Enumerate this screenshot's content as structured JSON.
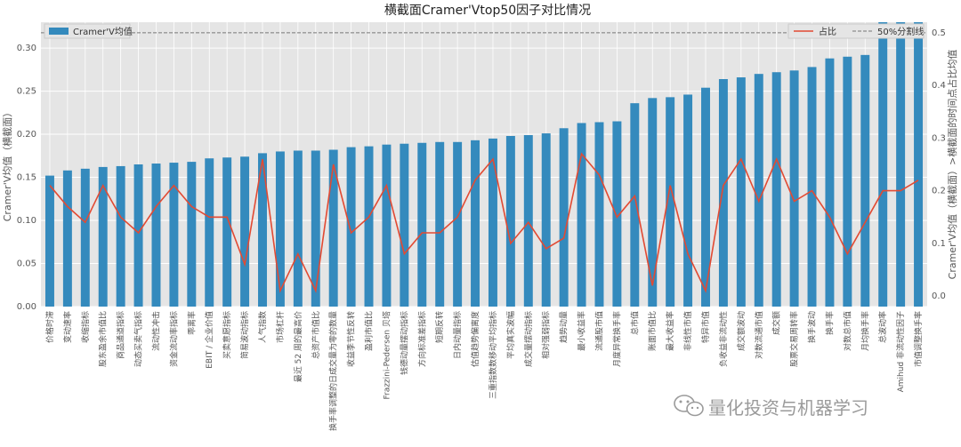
{
  "chart_data": {
    "type": "bar+line",
    "title": "横截面Cramer'Vtop50因子对比情况",
    "ylabel_left": "Cramer'V均值（横截面）",
    "ylabel_right": "Cramer'V均值（横截面）>横截面的时间点占比均值",
    "ylim_left": [
      0,
      0.33
    ],
    "ylim_right": [
      -0.02,
      0.52
    ],
    "yticks_left": [
      "0.00",
      "0.05",
      "0.10",
      "0.15",
      "0.20",
      "0.25",
      "0.30"
    ],
    "yticks_right": [
      "0.0",
      "0.1",
      "0.2",
      "0.3",
      "0.4",
      "0.5"
    ],
    "grid": true,
    "legend_left": {
      "label": "Cramer'V均值",
      "placement": "top-left"
    },
    "legend_right": [
      {
        "label": "占比",
        "style": "line",
        "color": "#e24a33"
      },
      {
        "label": "50%分割线",
        "style": "dashed",
        "color": "#777777"
      }
    ],
    "threshold": 0.5,
    "categories": [
      "价格时滞",
      "变动速率",
      "收缩指标",
      "股东盈余市值比",
      "商品通道指标",
      "动态买卖气指标",
      "流动性冲击",
      "资金流动率指标",
      "乖离率",
      "EBIT / 企业价值",
      "买卖意愿指标",
      "简易波动指标",
      "人气指数",
      "市场杠杆",
      "最近 52 周的最高价",
      "总资产市值比",
      "换手率调整的日成交量为零的数量",
      "收益季节性反转",
      "盈利市值比",
      "Frazzini-Pedersen 贝塔",
      "钱德动量摆动指标",
      "方向标准差指标",
      "短期反转",
      "日内动量指标",
      "估值趋势偏离度",
      "三重指数数移动平均指标",
      "平均真实波幅",
      "成交量摆动指标",
      "相对强弱指标",
      "趋势动量",
      "最小收益率",
      "流通股市值",
      "月度异常换手率",
      "总市值",
      "账面市值比",
      "最大收益率",
      "非线性市值",
      "特异市值",
      "负收益非流动性",
      "成交额波动",
      "对数流通市值",
      "成交额",
      "股票交易周转率",
      "换手波动",
      "换手率",
      "对数总市值",
      "月均换手率",
      "总波动率",
      "Amihud 非流动性因子",
      "市值调整换手率"
    ],
    "series": [
      {
        "name": "Cramer'V均值",
        "type": "bar",
        "color": "#348abd",
        "values": [
          0.152,
          0.158,
          0.16,
          0.162,
          0.163,
          0.165,
          0.166,
          0.167,
          0.168,
          0.172,
          0.173,
          0.174,
          0.178,
          0.18,
          0.181,
          0.181,
          0.182,
          0.185,
          0.186,
          0.188,
          0.189,
          0.19,
          0.191,
          0.191,
          0.193,
          0.195,
          0.198,
          0.199,
          0.201,
          0.207,
          0.213,
          0.214,
          0.215,
          0.236,
          0.242,
          0.243,
          0.246,
          0.254,
          0.264,
          0.266,
          0.27,
          0.272,
          0.274,
          0.278,
          0.288,
          0.29,
          0.292,
          0.33,
          0.33,
          0.33
        ]
      },
      {
        "name": "占比",
        "type": "line",
        "color": "#e24a33",
        "axis": "right",
        "values": [
          0.21,
          0.17,
          0.14,
          0.21,
          0.15,
          0.12,
          0.17,
          0.21,
          0.17,
          0.15,
          0.15,
          0.06,
          0.26,
          0.01,
          0.08,
          0.01,
          0.25,
          0.12,
          0.15,
          0.21,
          0.08,
          0.12,
          0.12,
          0.15,
          0.22,
          0.26,
          0.1,
          0.14,
          0.09,
          0.11,
          0.27,
          0.23,
          0.15,
          0.19,
          0.02,
          0.21,
          0.08,
          0.01,
          0.21,
          0.26,
          0.18,
          0.26,
          0.18,
          0.2,
          0.15,
          0.08,
          0.14,
          0.2,
          0.2,
          0.22
        ]
      }
    ]
  },
  "watermark": {
    "icon": "wechat-icon",
    "text": "量化投资与机器学习"
  }
}
